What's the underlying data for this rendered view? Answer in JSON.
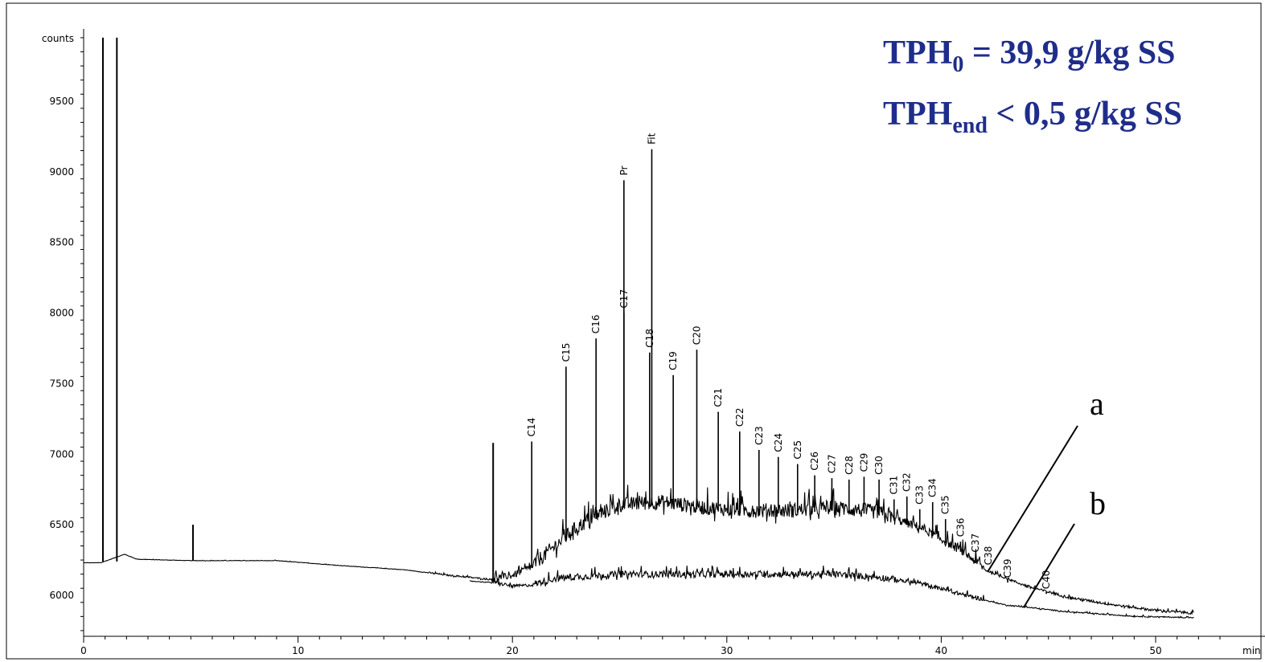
{
  "chart_data": {
    "type": "line",
    "ylabel": "counts",
    "xlabel": "min",
    "xlim": [
      0,
      53
    ],
    "ylim": [
      5700,
      9950
    ],
    "x_ticks": [
      "0",
      "10",
      "20",
      "30",
      "40",
      "50"
    ],
    "y_ticks": [
      "6000",
      "6500",
      "7000",
      "7500",
      "8000",
      "8500",
      "9000",
      "9500"
    ],
    "series": [
      {
        "name": "a"
      },
      {
        "name": "b"
      }
    ],
    "baseline_a": [
      [
        0,
        6230
      ],
      [
        0.8,
        6230
      ],
      [
        1.9,
        6290
      ],
      [
        2.5,
        6255
      ],
      [
        5,
        6245
      ],
      [
        9,
        6245
      ],
      [
        12,
        6210
      ],
      [
        15,
        6180
      ],
      [
        17,
        6140
      ],
      [
        19,
        6110
      ],
      [
        20,
        6130
      ],
      [
        21,
        6200
      ],
      [
        22,
        6330
      ],
      [
        23,
        6460
      ],
      [
        24,
        6550
      ],
      [
        25,
        6620
      ],
      [
        27,
        6640
      ],
      [
        29,
        6600
      ],
      [
        31,
        6580
      ],
      [
        33,
        6580
      ],
      [
        35,
        6600
      ],
      [
        37,
        6570
      ],
      [
        39,
        6470
      ],
      [
        41,
        6300
      ],
      [
        42,
        6180
      ],
      [
        44,
        6060
      ],
      [
        46,
        5980
      ],
      [
        48,
        5930
      ],
      [
        50,
        5890
      ],
      [
        51.8,
        5870
      ]
    ],
    "baseline_b": [
      [
        18,
        6100
      ],
      [
        19,
        6090
      ],
      [
        20,
        6060
      ],
      [
        21,
        6070
      ],
      [
        22,
        6110
      ],
      [
        25,
        6140
      ],
      [
        30,
        6140
      ],
      [
        35,
        6140
      ],
      [
        37,
        6120
      ],
      [
        39,
        6080
      ],
      [
        41,
        6000
      ],
      [
        43,
        5930
      ],
      [
        46,
        5880
      ],
      [
        49,
        5850
      ],
      [
        51.8,
        5840
      ]
    ],
    "labeled_peaks": [
      {
        "label": "C14",
        "x": 20.9,
        "y": 7090
      },
      {
        "label": "C15",
        "x": 22.5,
        "y": 7620
      },
      {
        "label": "C16",
        "x": 23.9,
        "y": 7820
      },
      {
        "label": "C17",
        "x": 25.2,
        "y": 8000
      },
      {
        "label": "Pr",
        "x": 25.2,
        "y": 8940
      },
      {
        "label": "C18",
        "x": 26.4,
        "y": 7720
      },
      {
        "label": "Fit",
        "x": 26.5,
        "y": 9160
      },
      {
        "label": "C19",
        "x": 27.5,
        "y": 7560
      },
      {
        "label": "C20",
        "x": 28.6,
        "y": 7740
      },
      {
        "label": "C21",
        "x": 29.6,
        "y": 7300
      },
      {
        "label": "C22",
        "x": 30.6,
        "y": 7160
      },
      {
        "label": "C23",
        "x": 31.5,
        "y": 7030
      },
      {
        "label": "C24",
        "x": 32.4,
        "y": 6980
      },
      {
        "label": "C25",
        "x": 33.3,
        "y": 6930
      },
      {
        "label": "C26",
        "x": 34.1,
        "y": 6850
      },
      {
        "label": "C27",
        "x": 34.9,
        "y": 6830
      },
      {
        "label": "C28",
        "x": 35.7,
        "y": 6820
      },
      {
        "label": "C29",
        "x": 36.4,
        "y": 6840
      },
      {
        "label": "C30",
        "x": 37.1,
        "y": 6820
      },
      {
        "label": "C31",
        "x": 37.8,
        "y": 6680
      },
      {
        "label": "C32",
        "x": 38.4,
        "y": 6700
      },
      {
        "label": "C33",
        "x": 39.0,
        "y": 6610
      },
      {
        "label": "C34",
        "x": 39.6,
        "y": 6660
      },
      {
        "label": "C35",
        "x": 40.2,
        "y": 6540
      },
      {
        "label": "C36",
        "x": 40.9,
        "y": 6380
      },
      {
        "label": "C37",
        "x": 41.6,
        "y": 6270
      },
      {
        "label": "C38",
        "x": 42.2,
        "y": 6180
      },
      {
        "label": "C39",
        "x": 43.1,
        "y": 6090
      },
      {
        "label": "C40",
        "x": 44.9,
        "y": 6010
      }
    ],
    "solvent_peaks": [
      {
        "x": 0.9,
        "y": 9950
      },
      {
        "x": 1.55,
        "y": 9950
      },
      {
        "x": 5.1,
        "y": 6500
      },
      {
        "x": 19.1,
        "y": 7080
      }
    ]
  },
  "annotations": {
    "tph0_main": "TPH",
    "tph0_sub": "0",
    "tph0_rest": " = 39,9 g/kg SS",
    "tphend_main": "TPH",
    "tphend_sub": "end",
    "tphend_rest": " < 0,5 g/kg SS",
    "trace_a_label": "a",
    "trace_b_label": "b"
  },
  "colors": {
    "annotation_text": "#1f2d8a",
    "trace": "#000000"
  }
}
